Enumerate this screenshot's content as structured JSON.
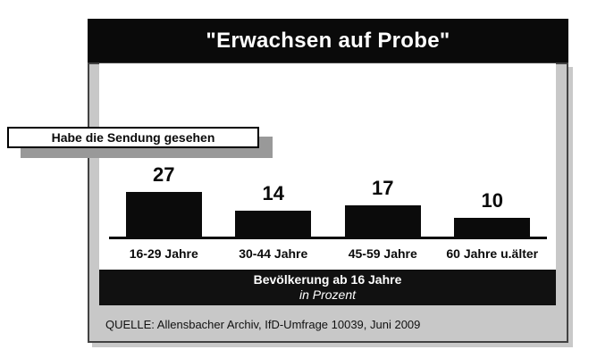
{
  "header": {
    "title": "\"Erwachsen auf Probe\""
  },
  "callout": {
    "label": "Habe die Sendung gesehen"
  },
  "chart_data": {
    "type": "bar",
    "title": "\"Erwachsen auf Probe\"",
    "subtitle": "Habe die Sendung gesehen",
    "categories": [
      "16-29 Jahre",
      "30-44 Jahre",
      "45-59 Jahre",
      "60 Jahre u.älter"
    ],
    "values": [
      27,
      14,
      17,
      10
    ],
    "unit": "Prozent",
    "xlabel": "",
    "ylabel": "",
    "ylim": [
      0,
      30
    ],
    "gridlines": false,
    "legend": "none",
    "value_labels": "above-bars",
    "annotations": [
      "Bevölkerung ab 16 Jahre",
      "in Prozent"
    ],
    "bar_color": "#0b0b0b"
  },
  "footer": {
    "line1": "Bevölkerung ab 16 Jahre",
    "line2": "in Prozent"
  },
  "source": {
    "text": "QUELLE: Allensbacher Archiv, IfD-Umfrage 10039, Juni 2009"
  },
  "colors": {
    "title_bg": "#0a0a0a",
    "title_text": "#ffffff",
    "panel_bg": "#c8c8c8",
    "panel_border": "#424242",
    "callout_shadow": "#999999",
    "bar": "#0b0b0b",
    "footer_bg": "#111111"
  }
}
